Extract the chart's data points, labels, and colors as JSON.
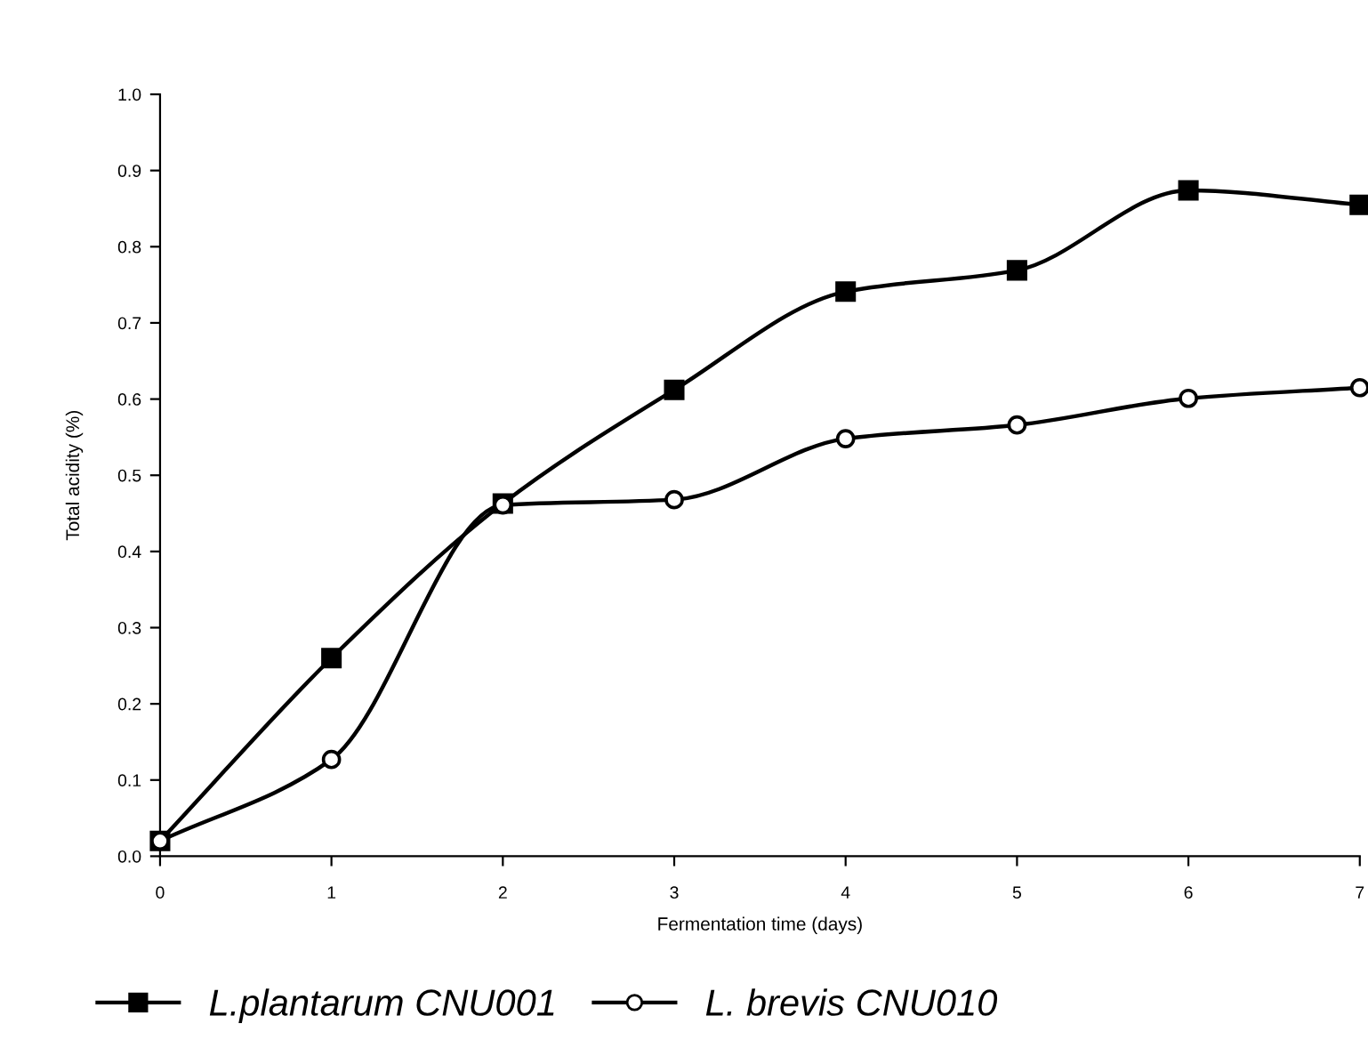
{
  "chart_data": {
    "type": "line",
    "xlabel": "Fermentation time (days)",
    "ylabel": "Total acidity (%)",
    "x": [
      0,
      1,
      2,
      3,
      4,
      5,
      6,
      7
    ],
    "series": [
      {
        "name": "L.plantarum CNU001",
        "color": "#000000",
        "marker": "square",
        "values": [
          0.02,
          0.26,
          0.463,
          0.612,
          0.741,
          0.769,
          0.874,
          0.855
        ]
      },
      {
        "name": "L. brevis CNU010",
        "color": "#000000",
        "marker": "circle",
        "values": [
          0.02,
          0.127,
          0.461,
          0.468,
          0.548,
          0.566,
          0.601,
          0.615
        ]
      }
    ],
    "xlim": [
      0,
      7
    ],
    "xticks": [
      0,
      1,
      2,
      3,
      4,
      5,
      6,
      7
    ],
    "ylim": [
      0,
      1.0
    ],
    "yticks": [
      {
        "value": 0,
        "label": "0.0"
      },
      0.1,
      0.2,
      0.3,
      0.4,
      0.5,
      0.6,
      0.7,
      0.8,
      0.9,
      {
        "value": 1,
        "label": "1.0"
      }
    ],
    "grid": false,
    "legend": "bottom",
    "line_style": "solid"
  }
}
